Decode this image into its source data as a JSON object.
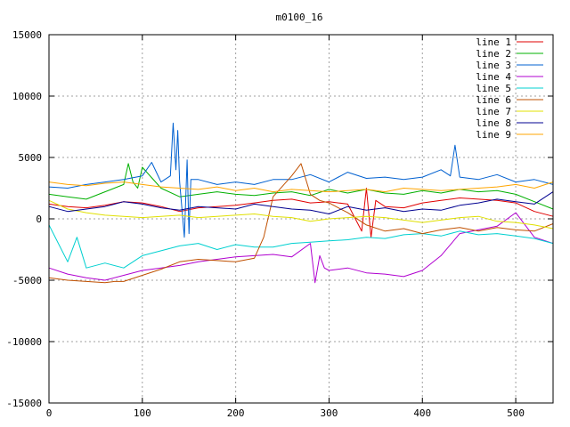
{
  "chart_data": {
    "type": "line",
    "title": "m0100_16",
    "xlabel": "",
    "ylabel": "",
    "xlim": [
      0,
      540
    ],
    "ylim": [
      -15000,
      15000
    ],
    "x_ticks": [
      0,
      100,
      200,
      300,
      400,
      500
    ],
    "y_ticks": [
      -15000,
      -10000,
      -5000,
      0,
      5000,
      10000,
      15000
    ],
    "grid": true,
    "legend_position": "top-right",
    "series": [
      {
        "name": "line 1",
        "color": "#e00000",
        "x": [
          0,
          20,
          40,
          60,
          80,
          100,
          120,
          140,
          160,
          180,
          200,
          220,
          240,
          260,
          280,
          300,
          320,
          335,
          340,
          345,
          350,
          360,
          380,
          400,
          420,
          440,
          460,
          480,
          500,
          520,
          540
        ],
        "y": [
          1200,
          1000,
          900,
          1100,
          1400,
          1300,
          1000,
          600,
          900,
          1000,
          1100,
          1300,
          1500,
          1600,
          1300,
          1400,
          1200,
          -1000,
          2500,
          -1500,
          1500,
          1000,
          900,
          1300,
          1500,
          1700,
          1600,
          1500,
          1300,
          600,
          200
        ]
      },
      {
        "name": "line 2",
        "color": "#00b000",
        "x": [
          0,
          20,
          40,
          60,
          80,
          85,
          90,
          95,
          100,
          120,
          140,
          160,
          180,
          200,
          220,
          240,
          260,
          280,
          300,
          320,
          340,
          360,
          380,
          400,
          420,
          440,
          460,
          480,
          500,
          520,
          540
        ],
        "y": [
          2000,
          1800,
          1600,
          2200,
          2800,
          4500,
          3000,
          2500,
          4200,
          2500,
          1800,
          2000,
          2200,
          2000,
          1900,
          2100,
          2200,
          1900,
          2400,
          2100,
          2400,
          2100,
          2000,
          2300,
          2100,
          2400,
          2200,
          2300,
          2000,
          1400,
          800
        ]
      },
      {
        "name": "line 3",
        "color": "#0060d0",
        "x": [
          0,
          20,
          40,
          60,
          80,
          100,
          110,
          120,
          130,
          133,
          136,
          138,
          140,
          145,
          148,
          150,
          152,
          160,
          180,
          200,
          220,
          240,
          260,
          280,
          300,
          320,
          340,
          360,
          380,
          400,
          420,
          430,
          435,
          440,
          460,
          480,
          500,
          520,
          540
        ],
        "y": [
          2600,
          2500,
          2800,
          3000,
          3200,
          3500,
          4600,
          3000,
          3500,
          7800,
          4000,
          7200,
          3000,
          -1500,
          4800,
          -1200,
          3200,
          3200,
          2800,
          3000,
          2800,
          3200,
          3200,
          3600,
          3000,
          3800,
          3300,
          3400,
          3200,
          3400,
          4000,
          3500,
          6000,
          3400,
          3200,
          3600,
          3000,
          3200,
          2800
        ]
      },
      {
        "name": "line 4",
        "color": "#b000d0",
        "x": [
          0,
          20,
          40,
          60,
          80,
          100,
          120,
          140,
          160,
          180,
          200,
          220,
          240,
          260,
          280,
          285,
          290,
          295,
          300,
          320,
          340,
          360,
          380,
          400,
          420,
          440,
          460,
          480,
          500,
          520,
          540
        ],
        "y": [
          -4000,
          -4500,
          -4800,
          -5000,
          -4600,
          -4200,
          -4000,
          -3800,
          -3500,
          -3300,
          -3100,
          -3000,
          -2900,
          -3100,
          -2000,
          -5200,
          -3000,
          -4000,
          -4200,
          -4000,
          -4400,
          -4500,
          -4700,
          -4200,
          -3000,
          -1200,
          -900,
          -600,
          500,
          -1500,
          -2000
        ]
      },
      {
        "name": "line 5",
        "color": "#00d0d0",
        "x": [
          0,
          10,
          20,
          30,
          40,
          60,
          80,
          100,
          120,
          140,
          160,
          180,
          200,
          220,
          240,
          260,
          280,
          300,
          320,
          340,
          360,
          380,
          400,
          420,
          440,
          460,
          480,
          500,
          520,
          540
        ],
        "y": [
          -500,
          -2000,
          -3500,
          -1500,
          -4000,
          -3600,
          -4000,
          -3000,
          -2600,
          -2200,
          -2000,
          -2500,
          -2100,
          -2300,
          -2300,
          -2000,
          -1900,
          -1800,
          -1700,
          -1500,
          -1600,
          -1300,
          -1200,
          -1400,
          -1000,
          -1300,
          -1200,
          -1400,
          -1600,
          -2000
        ]
      },
      {
        "name": "line 6",
        "color": "#c05000",
        "x": [
          0,
          20,
          40,
          60,
          70,
          80,
          100,
          120,
          140,
          160,
          180,
          200,
          220,
          230,
          240,
          260,
          270,
          280,
          290,
          300,
          320,
          340,
          360,
          380,
          400,
          420,
          440,
          460,
          480,
          500,
          520,
          540
        ],
        "y": [
          -4800,
          -5000,
          -5100,
          -5200,
          -5100,
          -5100,
          -4600,
          -4100,
          -3500,
          -3300,
          -3400,
          -3500,
          -3200,
          -1500,
          1800,
          3500,
          4500,
          2000,
          1500,
          1300,
          500,
          -500,
          -1000,
          -800,
          -1200,
          -900,
          -700,
          -1000,
          -700,
          -900,
          -1000,
          -400
        ]
      },
      {
        "name": "line 7",
        "color": "#e0e000",
        "x": [
          0,
          20,
          40,
          60,
          80,
          100,
          120,
          140,
          160,
          180,
          200,
          220,
          240,
          260,
          280,
          300,
          320,
          340,
          360,
          380,
          400,
          420,
          440,
          460,
          480,
          500,
          520,
          540
        ],
        "y": [
          1500,
          800,
          500,
          300,
          200,
          100,
          200,
          300,
          100,
          200,
          300,
          400,
          200,
          100,
          -200,
          0,
          100,
          200,
          100,
          -100,
          -300,
          -100,
          100,
          200,
          -200,
          -300,
          -500,
          -800
        ]
      },
      {
        "name": "line 8",
        "color": "#000090",
        "x": [
          0,
          20,
          40,
          60,
          80,
          100,
          120,
          140,
          160,
          180,
          200,
          220,
          240,
          260,
          280,
          300,
          320,
          340,
          360,
          380,
          400,
          420,
          440,
          460,
          480,
          500,
          520,
          540
        ],
        "y": [
          1000,
          600,
          800,
          1000,
          1400,
          1200,
          900,
          700,
          1000,
          900,
          800,
          1200,
          1000,
          800,
          700,
          400,
          1000,
          700,
          900,
          600,
          800,
          700,
          1100,
          1300,
          1600,
          1400,
          1200,
          2200
        ]
      },
      {
        "name": "line 9",
        "color": "#ffa500",
        "x": [
          0,
          20,
          40,
          60,
          80,
          100,
          120,
          140,
          160,
          180,
          200,
          220,
          240,
          260,
          280,
          300,
          320,
          340,
          360,
          380,
          400,
          420,
          440,
          460,
          480,
          500,
          520,
          540
        ],
        "y": [
          3000,
          2800,
          2700,
          2900,
          3000,
          2800,
          2600,
          2500,
          2400,
          2600,
          2300,
          2500,
          2200,
          2400,
          2300,
          2200,
          2300,
          2400,
          2200,
          2500,
          2400,
          2300,
          2400,
          2500,
          2600,
          2800,
          2500,
          3000
        ]
      }
    ]
  }
}
